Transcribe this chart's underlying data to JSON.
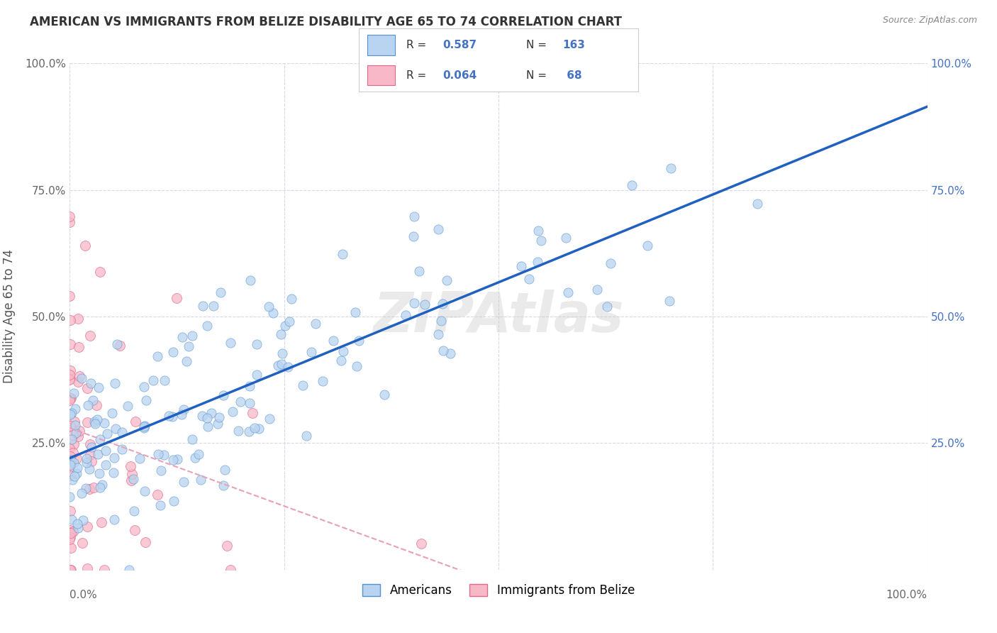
{
  "title": "AMERICAN VS IMMIGRANTS FROM BELIZE DISABILITY AGE 65 TO 74 CORRELATION CHART",
  "source": "Source: ZipAtlas.com",
  "ylabel": "Disability Age 65 to 74",
  "watermark": "ZIPAtlas",
  "american_R": 0.587,
  "american_N": 163,
  "belize_R": 0.064,
  "belize_N": 68,
  "american_color": "#b8d4f0",
  "american_edge_color": "#5590d0",
  "american_line_color": "#2060c0",
  "belize_color": "#f8b8c8",
  "belize_edge_color": "#e06888",
  "belize_trend_color": "#e8a0b8",
  "xlim": [
    0.0,
    1.0
  ],
  "ylim": [
    0.0,
    1.0
  ],
  "x_tick_labels_left": "0.0%",
  "x_tick_labels_right": "100.0%",
  "y_tick_labels": [
    "",
    "25.0%",
    "50.0%",
    "75.0%",
    "100.0%"
  ],
  "y_tick_labels_right": [
    "",
    "25.0%",
    "50.0%",
    "75.0%",
    "100.0%"
  ],
  "background_color": "#ffffff",
  "grid_color": "#d8d8e8",
  "legend_label_american": "Americans",
  "legend_label_belize": "Immigrants from Belize"
}
